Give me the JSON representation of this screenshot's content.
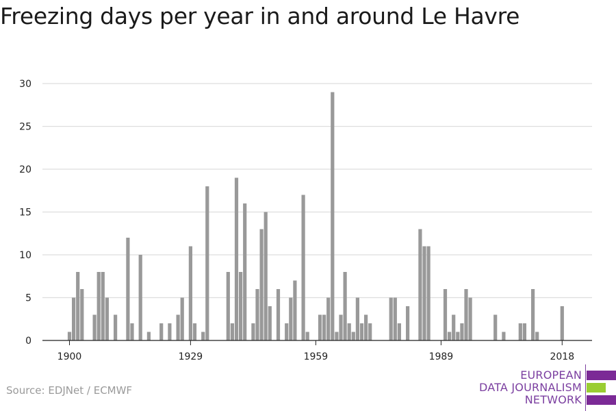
{
  "title": "Freezing days per year in and around Le Havre",
  "source": "Source: EDJNet / ECMWF",
  "logo": {
    "lines": [
      "EUROPEAN",
      "DATA JOURNALISM",
      "NETWORK"
    ],
    "colors": [
      "#7b2a96",
      "#9acd32",
      "#7b2a96"
    ]
  },
  "chart_data": {
    "type": "bar",
    "title": "Freezing days per year in and around Le Havre",
    "xlabel": "",
    "ylabel": "",
    "ylim": [
      0,
      30
    ],
    "yticks": [
      0,
      5,
      10,
      15,
      20,
      25,
      30
    ],
    "xticks": [
      1900,
      1929,
      1959,
      1989,
      2018
    ],
    "grid": true,
    "bar_color": "#999999",
    "x": [
      1900,
      1901,
      1902,
      1903,
      1904,
      1905,
      1906,
      1907,
      1908,
      1909,
      1910,
      1911,
      1912,
      1913,
      1914,
      1915,
      1916,
      1917,
      1918,
      1919,
      1920,
      1921,
      1922,
      1923,
      1924,
      1925,
      1926,
      1927,
      1928,
      1929,
      1930,
      1931,
      1932,
      1933,
      1934,
      1935,
      1936,
      1937,
      1938,
      1939,
      1940,
      1941,
      1942,
      1943,
      1944,
      1945,
      1946,
      1947,
      1948,
      1949,
      1950,
      1951,
      1952,
      1953,
      1954,
      1955,
      1956,
      1957,
      1958,
      1959,
      1960,
      1961,
      1962,
      1963,
      1964,
      1965,
      1966,
      1967,
      1968,
      1969,
      1970,
      1971,
      1972,
      1973,
      1974,
      1975,
      1976,
      1977,
      1978,
      1979,
      1980,
      1981,
      1982,
      1983,
      1984,
      1985,
      1986,
      1987,
      1988,
      1989,
      1990,
      1991,
      1992,
      1993,
      1994,
      1995,
      1996,
      1997,
      1998,
      1999,
      2000,
      2001,
      2002,
      2003,
      2004,
      2005,
      2006,
      2007,
      2008,
      2009,
      2010,
      2011,
      2012,
      2013,
      2014,
      2015,
      2016,
      2017,
      2018
    ],
    "values": [
      1,
      5,
      8,
      6,
      0,
      0,
      3,
      8,
      8,
      5,
      0,
      3,
      0,
      0,
      12,
      2,
      0,
      10,
      0,
      1,
      0,
      0,
      2,
      0,
      2,
      0,
      3,
      5,
      0,
      11,
      2,
      0,
      1,
      18,
      0,
      0,
      0,
      0,
      8,
      2,
      19,
      8,
      16,
      0,
      2,
      6,
      13,
      15,
      4,
      0,
      6,
      0,
      2,
      5,
      7,
      0,
      17,
      1,
      0,
      0,
      3,
      3,
      5,
      29,
      1,
      3,
      8,
      2,
      1,
      5,
      2,
      3,
      2,
      0,
      0,
      0,
      0,
      5,
      5,
      2,
      0,
      4,
      0,
      0,
      13,
      11,
      11,
      0,
      0,
      0,
      6,
      1,
      3,
      1,
      2,
      6,
      5,
      0,
      0,
      0,
      0,
      0,
      3,
      0,
      1,
      0,
      0,
      0,
      2,
      2,
      0,
      6,
      1,
      0,
      0,
      0,
      0,
      0,
      4
    ]
  }
}
